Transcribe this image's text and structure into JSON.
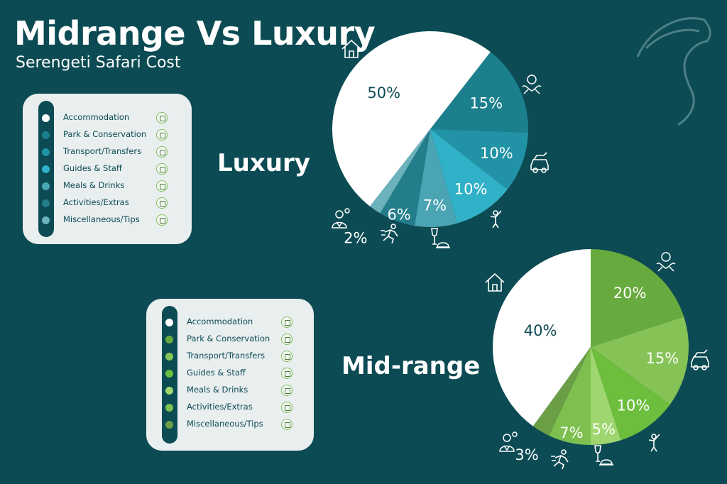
{
  "header": {
    "title": "Midrange Vs Luxury",
    "subtitle": "Serengeti Safari Cost"
  },
  "colors": {
    "background": "#0c4b53",
    "luxury_palette": [
      "#ffffff",
      "#1b7f8e",
      "#2293a6",
      "#31b1c7",
      "#4aa4b4",
      "#247d8b",
      "#6bb2bc"
    ],
    "midrange_palette": [
      "#ffffff",
      "#67aa3d",
      "#85c356",
      "#6cbe3c",
      "#a0d66f",
      "#7ec04f",
      "#6b9e45"
    ]
  },
  "legend_items": [
    {
      "label": "Accommodation",
      "icon": "house-icon"
    },
    {
      "label": "Park & Conservation",
      "icon": "hands-money-icon"
    },
    {
      "label": "Transport/Transfers",
      "icon": "safari-car-icon"
    },
    {
      "label": "Guides & Staff",
      "icon": "guide-person-icon"
    },
    {
      "label": "Meals & Drinks",
      "icon": "meal-icon"
    },
    {
      "label": "Activities/Extras",
      "icon": "running-person-icon"
    },
    {
      "label": "Miscellaneous/Tips",
      "icon": "tips-person-icon"
    }
  ],
  "chart_data": [
    {
      "type": "pie",
      "title": "Luxury",
      "categories": [
        "Accommodation",
        "Park & Conservation",
        "Transport/Transfers",
        "Guides & Staff",
        "Meals & Drinks",
        "Activities/Extras",
        "Miscellaneous/Tips"
      ],
      "values": [
        50,
        15,
        10,
        10,
        7,
        6,
        2
      ],
      "labels": [
        "50%",
        "15%",
        "10%",
        "10%",
        "7%",
        "6%",
        "2%"
      ]
    },
    {
      "type": "pie",
      "title": "Mid-range",
      "categories": [
        "Accommodation",
        "Park & Conservation",
        "Transport/Transfers",
        "Guides & Staff",
        "Meals & Drinks",
        "Activities/Extras",
        "Miscellaneous/Tips"
      ],
      "values": [
        40,
        20,
        15,
        10,
        5,
        7,
        3
      ],
      "labels": [
        "40%",
        "20%",
        "15%",
        "10%",
        "5%",
        "7%",
        "3%"
      ]
    }
  ]
}
